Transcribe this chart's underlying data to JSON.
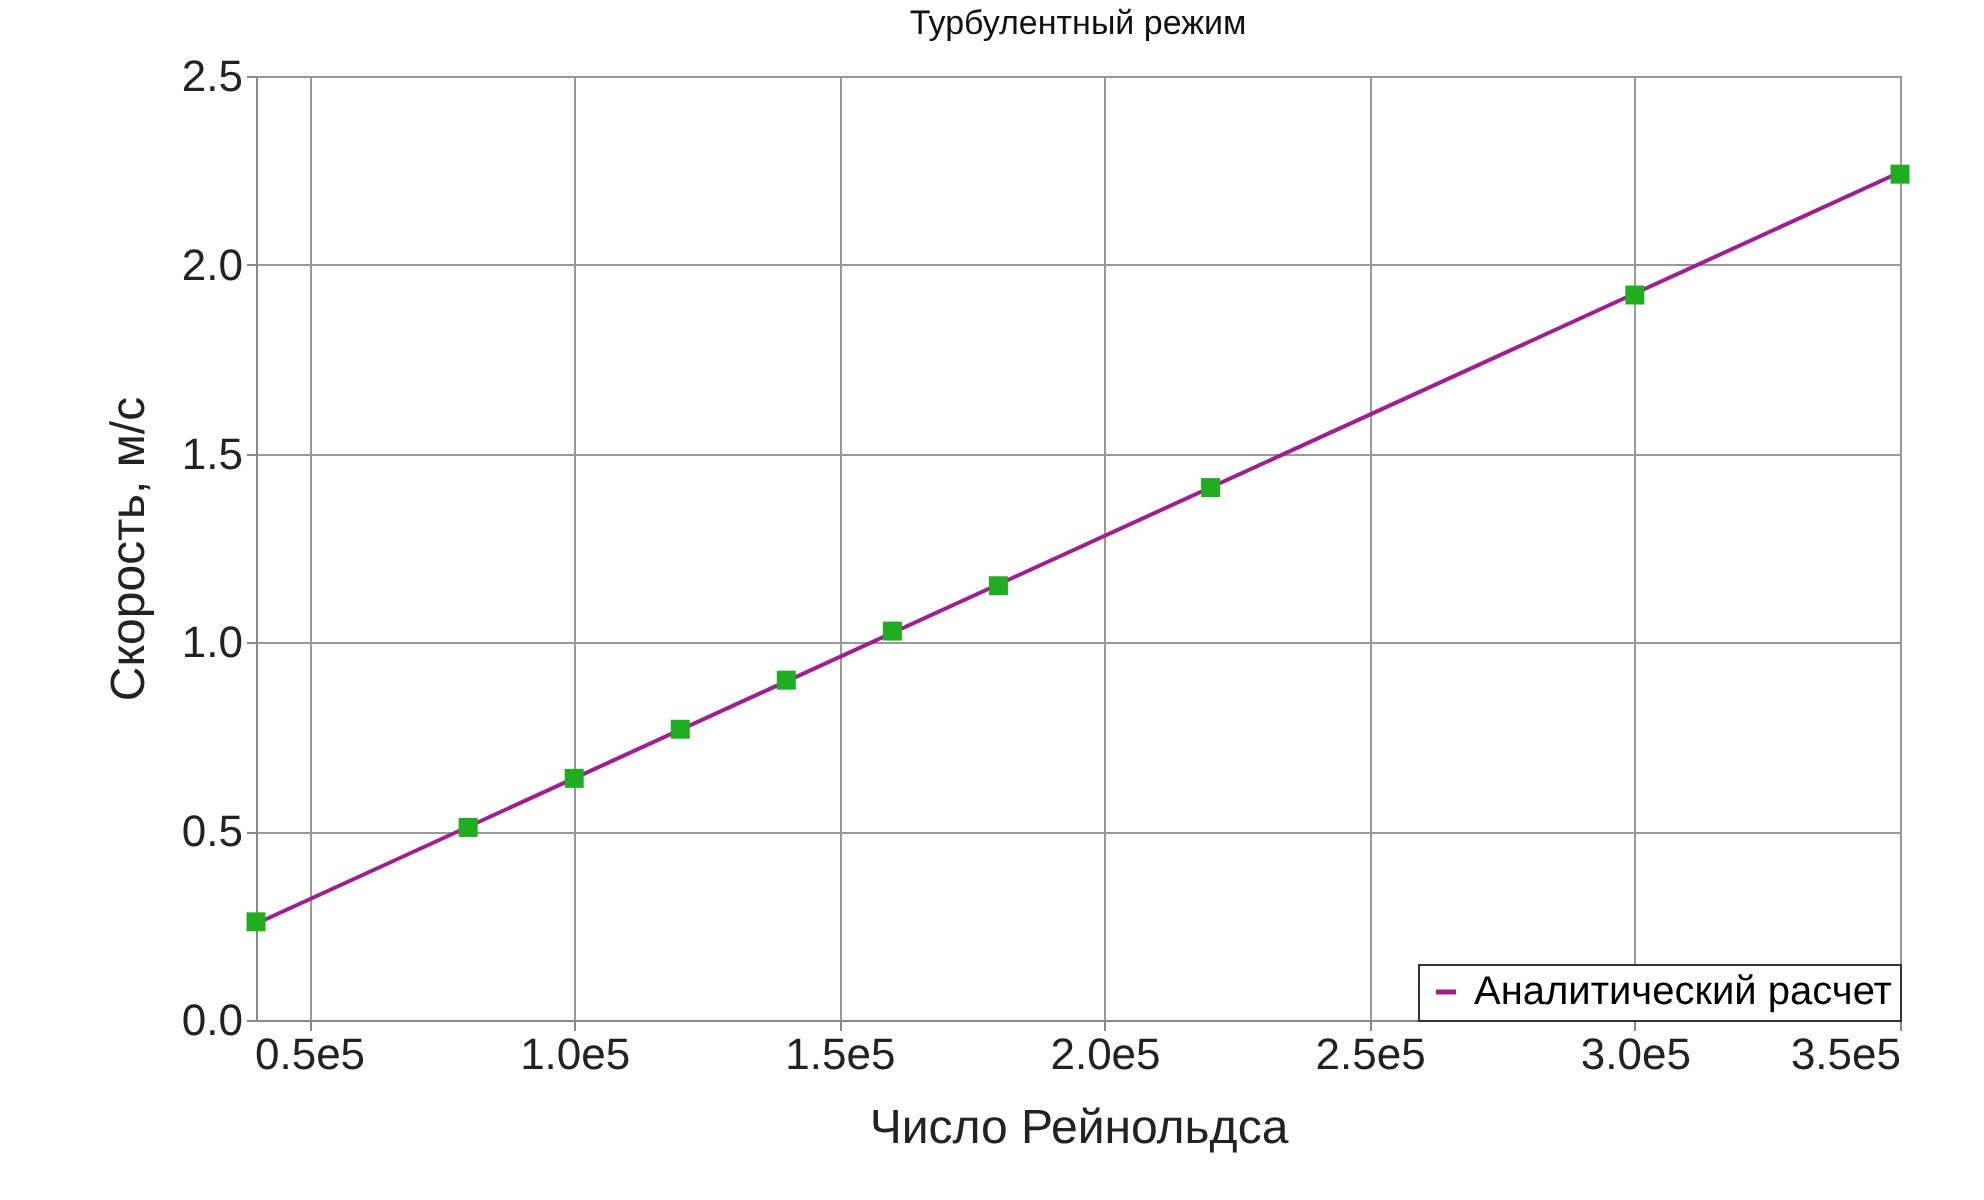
{
  "chart_data": {
    "type": "line",
    "title": "Турбулентный режим",
    "xlabel": "Число Рейнольдса",
    "ylabel": "Скорость, м/с",
    "series": [
      {
        "name": "Аналитический расчет",
        "color": "#a01e90",
        "marker": "none",
        "line_style": "solid",
        "x": [
          40000,
          350000
        ],
        "values": [
          0.255,
          2.245
        ]
      },
      {
        "type": "scatter",
        "color": "#1fae1f",
        "marker": "square",
        "x": [
          40000,
          80000,
          100000,
          120000,
          140000,
          160000,
          180000,
          220000,
          300000,
          350000
        ],
        "values": [
          0.26,
          0.51,
          0.64,
          0.77,
          0.9,
          1.03,
          1.15,
          1.41,
          1.92,
          2.24
        ]
      }
    ],
    "xlim": [
      40000,
      350000
    ],
    "xticks": [
      {
        "value": 50000,
        "label": "0.5e5"
      },
      {
        "value": 100000,
        "label": "1.0e5"
      },
      {
        "value": 150000,
        "label": "1.5e5"
      },
      {
        "value": 200000,
        "label": "2.0e5"
      },
      {
        "value": 250000,
        "label": "2.5e5"
      },
      {
        "value": 300000,
        "label": "3.0e5"
      },
      {
        "value": 350000,
        "label": "3.5e5"
      }
    ],
    "ylim": [
      0,
      2.5
    ],
    "yticks": [
      {
        "value": 0,
        "label": "0.0"
      },
      0.5,
      {
        "value": 1,
        "label": "1.0"
      },
      1.5,
      {
        "value": 2,
        "label": "2.0"
      },
      2.5
    ],
    "grid": true,
    "legend": "bottom right"
  }
}
